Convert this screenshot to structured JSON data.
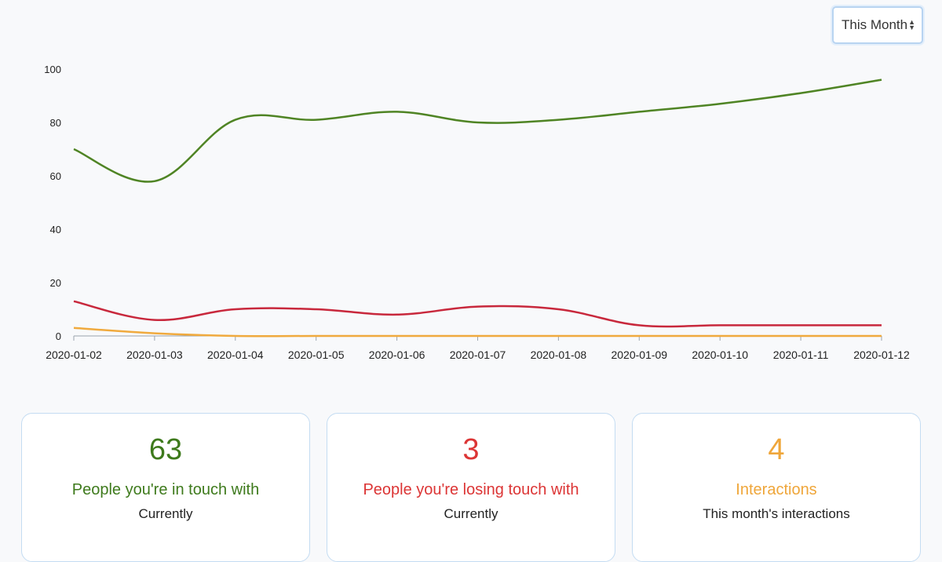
{
  "period_select": {
    "value": "This Month"
  },
  "chart_data": {
    "type": "line",
    "x": [
      "2020-01-02",
      "2020-01-03",
      "2020-01-04",
      "2020-01-05",
      "2020-01-06",
      "2020-01-07",
      "2020-01-08",
      "2020-01-09",
      "2020-01-10",
      "2020-01-11",
      "2020-01-12"
    ],
    "ylim": [
      0,
      100
    ],
    "yticks": [
      0,
      20,
      40,
      60,
      80,
      100
    ],
    "grid": false,
    "series": [
      {
        "color": "#4f8424",
        "values": [
          70,
          58,
          81,
          81,
          84,
          80,
          81,
          84,
          87,
          91,
          96
        ]
      },
      {
        "color": "#c8283c",
        "values": [
          13,
          6,
          10,
          10,
          8,
          11,
          10,
          4,
          4,
          4,
          4
        ]
      },
      {
        "color": "#f0aa3e",
        "values": [
          3,
          1,
          0,
          0,
          0,
          0,
          0,
          0,
          0,
          0,
          0
        ]
      }
    ]
  },
  "cards": [
    {
      "value": "63",
      "title": "People you're in touch with",
      "subtitle": "Currently",
      "color": "#3e7a1c"
    },
    {
      "value": "3",
      "title": "People you're losing touch with",
      "subtitle": "Currently",
      "color": "#dc3535"
    },
    {
      "value": "4",
      "title": "Interactions",
      "subtitle": "This month's interactions",
      "color": "#efa63a"
    }
  ]
}
